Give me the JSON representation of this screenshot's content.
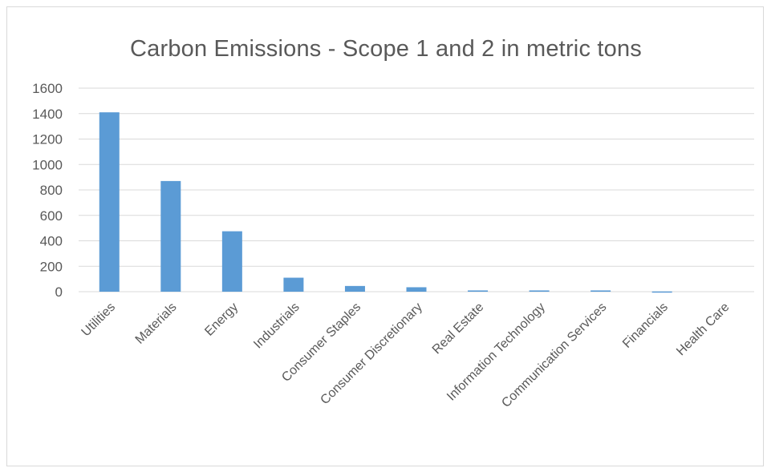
{
  "chart_data": {
    "type": "bar",
    "title": "Carbon Emissions - Scope 1 and 2 in metric tons",
    "xlabel": "",
    "ylabel": "",
    "categories": [
      "Utilities",
      "Materials",
      "Energy",
      "Industrials",
      "Consumer Staples",
      "Consumer Discretionary",
      "Real Estate",
      "Information Technology",
      "Communication Services",
      "Financials",
      "Health Care"
    ],
    "values": [
      1410,
      870,
      475,
      110,
      45,
      35,
      10,
      10,
      10,
      2,
      1
    ],
    "ylim": [
      0,
      1600
    ],
    "yticks": [
      0,
      200,
      400,
      600,
      800,
      1000,
      1200,
      1400,
      1600
    ],
    "grid": true,
    "legend": "none",
    "bar_color": "#5b9bd5",
    "grid_color": "#d9d9d9"
  }
}
